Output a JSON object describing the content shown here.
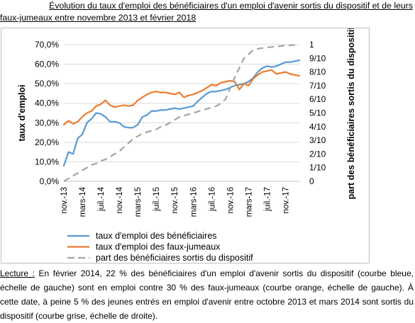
{
  "title": {
    "line1": "Évolution du taux d'emploi des bénéficiaires d'un emploi d'avenir sortis du dispositif et de leurs",
    "line2": "faux-jumeaux entre novembre 2013 et février 2018"
  },
  "chart_data": {
    "type": "line",
    "ylabel_left": "taux d'emploi",
    "ylabel_right": "part des bénéficiaires sortis du dispositif",
    "yticks_left": [
      "0,0%",
      "10,0%",
      "20,0%",
      "30,0%",
      "40,0%",
      "50,0%",
      "60,0%",
      "70,0%"
    ],
    "yticks_right": [
      "0",
      "1/10",
      "2/10",
      "3/10",
      "4/10",
      "5/10",
      "6/10",
      "7/10",
      "8/10",
      "9/10",
      "1"
    ],
    "ylim_left": [
      0,
      0.7
    ],
    "ylim_right": [
      0,
      1
    ],
    "xtick_labels": [
      "nov.-13",
      "mars-14",
      "juil.-14",
      "nov.-14",
      "mars-15",
      "juil.-15",
      "nov.-15",
      "mars-16",
      "juil.-16",
      "nov.-16",
      "mars-17",
      "juil.-17",
      "nov.-17"
    ],
    "grid": true,
    "legend_position": "bottom",
    "x": [
      "2013-11",
      "2013-12",
      "2014-01",
      "2014-02",
      "2014-03",
      "2014-04",
      "2014-05",
      "2014-06",
      "2014-07",
      "2014-08",
      "2014-09",
      "2014-10",
      "2014-11",
      "2014-12",
      "2015-01",
      "2015-02",
      "2015-03",
      "2015-04",
      "2015-05",
      "2015-06",
      "2015-07",
      "2015-08",
      "2015-09",
      "2015-10",
      "2015-11",
      "2015-12",
      "2016-01",
      "2016-02",
      "2016-03",
      "2016-04",
      "2016-05",
      "2016-06",
      "2016-07",
      "2016-08",
      "2016-09",
      "2016-10",
      "2016-11",
      "2016-12",
      "2017-01",
      "2017-02",
      "2017-03",
      "2017-04",
      "2017-05",
      "2017-06",
      "2017-07",
      "2017-08",
      "2017-09",
      "2017-10",
      "2017-11",
      "2017-12",
      "2018-01",
      "2018-02"
    ],
    "series": [
      {
        "name": "taux d'emploi  des bénéficiaires",
        "axis": "left",
        "color": "#5b9bd5",
        "dash": "solid",
        "values": [
          0.08,
          0.15,
          0.14,
          0.22,
          0.24,
          0.3,
          0.32,
          0.35,
          0.345,
          0.33,
          0.305,
          0.305,
          0.3,
          0.28,
          0.275,
          0.275,
          0.29,
          0.33,
          0.34,
          0.36,
          0.36,
          0.365,
          0.365,
          0.37,
          0.375,
          0.37,
          0.375,
          0.38,
          0.385,
          0.41,
          0.43,
          0.45,
          0.46,
          0.46,
          0.465,
          0.47,
          0.48,
          0.49,
          0.495,
          0.5,
          0.51,
          0.53,
          0.56,
          0.58,
          0.59,
          0.585,
          0.59,
          0.6,
          0.61,
          0.61,
          0.615,
          0.62
        ]
      },
      {
        "name": "taux d'emploi des faux-jumeaux",
        "axis": "left",
        "color": "#ed7d31",
        "dash": "solid",
        "values": [
          0.29,
          0.31,
          0.295,
          0.305,
          0.33,
          0.35,
          0.36,
          0.385,
          0.395,
          0.415,
          0.39,
          0.38,
          0.385,
          0.39,
          0.385,
          0.39,
          0.415,
          0.43,
          0.445,
          0.455,
          0.46,
          0.455,
          0.455,
          0.45,
          0.445,
          0.455,
          0.43,
          0.44,
          0.445,
          0.455,
          0.465,
          0.48,
          0.495,
          0.49,
          0.505,
          0.51,
          0.515,
          0.51,
          0.47,
          0.5,
          0.49,
          0.525,
          0.545,
          0.56,
          0.565,
          0.57,
          0.55,
          0.555,
          0.56,
          0.55,
          0.545,
          0.54
        ]
      },
      {
        "name": "part des bénéficiaires sortis du dispositif",
        "axis": "right",
        "color": "#a5a5a5",
        "dash": "dashed",
        "values": [
          0.0,
          0.02,
          0.04,
          0.06,
          0.08,
          0.1,
          0.12,
          0.13,
          0.15,
          0.16,
          0.18,
          0.2,
          0.22,
          0.25,
          0.28,
          0.31,
          0.33,
          0.35,
          0.36,
          0.37,
          0.38,
          0.4,
          0.41,
          0.43,
          0.45,
          0.47,
          0.48,
          0.49,
          0.5,
          0.51,
          0.52,
          0.53,
          0.54,
          0.55,
          0.57,
          0.6,
          0.68,
          0.76,
          0.83,
          0.9,
          0.93,
          0.96,
          0.97,
          0.975,
          0.98,
          0.983,
          0.985,
          0.99,
          0.993,
          0.995,
          0.998,
          1.0
        ]
      }
    ]
  },
  "reading": {
    "label": "Lecture :",
    "text": " En février 2014, 22 % des bénéficiaires d'un emploi d'avenir sortis du dispositif (courbe bleue, échelle de gauche) sont en emploi contre 30 % des faux-jumeaux (courbe orange, échelle de gauche). À cette date, à peine 5 % des jeunes entrés en emploi d'avenir entre octobre 2013 et mars 2014 sont sortis du dispositif (courbe grise, échelle de droite)."
  }
}
